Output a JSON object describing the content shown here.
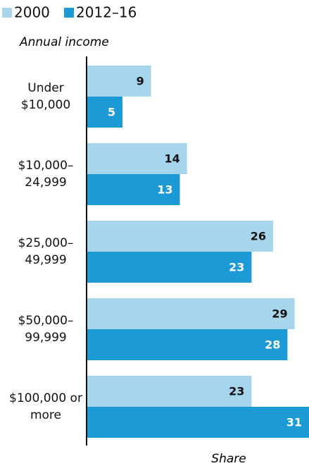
{
  "chart_data": {
    "type": "bar",
    "orientation": "horizontal",
    "y_label": "Annual income",
    "x_label": "Share",
    "categories": [
      "Under $10,000",
      "$10,000–24,999",
      "$25,000–49,999",
      "$50,000–99,999",
      "$100,000 or more"
    ],
    "series": [
      {
        "name": "2000",
        "color": "#a6d5ec",
        "values": [
          9,
          14,
          26,
          29,
          23
        ]
      },
      {
        "name": "2012–16",
        "color": "#1b9ad6",
        "values": [
          5,
          13,
          23,
          28,
          31
        ]
      }
    ],
    "xlim": [
      0,
      31
    ],
    "legend": "top-left"
  }
}
